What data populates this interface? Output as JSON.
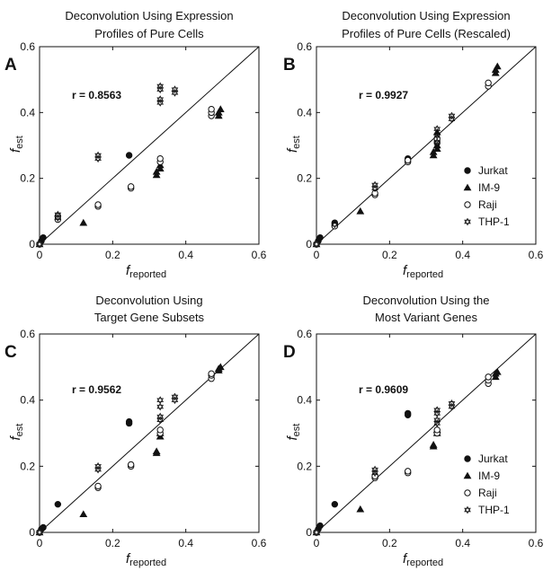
{
  "figure": {
    "background": "#ffffff",
    "ink": "#111111"
  },
  "chart_data": [
    {
      "panel": "A",
      "type": "scatter",
      "title_lines": [
        "Deconvolution Using Expression",
        "Profiles of Pure Cells"
      ],
      "xlabel": "f",
      "xlabel_sub": "reported",
      "ylabel": "f",
      "ylabel_sub": "est",
      "xlim": [
        0,
        0.6
      ],
      "ylim": [
        0,
        0.6
      ],
      "xticks": [
        "0",
        "0.2",
        "0.4",
        "0.6"
      ],
      "yticks": [
        "0",
        "0.2",
        "0.4",
        "0.6"
      ],
      "annotation": "r = 0.8563",
      "diagonal": true,
      "legend": null,
      "series": [
        {
          "name": "Jurkat",
          "marker": "filled-circle",
          "points": [
            [
              0.0,
              0.0
            ],
            [
              0.005,
              0.01
            ],
            [
              0.01,
              0.02
            ],
            [
              0.245,
              0.27
            ]
          ]
        },
        {
          "name": "IM-9",
          "marker": "filled-triangle",
          "points": [
            [
              0.0,
              0.0
            ],
            [
              0.12,
              0.065
            ],
            [
              0.32,
              0.21
            ],
            [
              0.32,
              0.22
            ],
            [
              0.33,
              0.23
            ],
            [
              0.33,
              0.24
            ],
            [
              0.49,
              0.39
            ],
            [
              0.49,
              0.4
            ],
            [
              0.495,
              0.41
            ]
          ]
        },
        {
          "name": "Raji",
          "marker": "open-circle",
          "points": [
            [
              0.0,
              0.0
            ],
            [
              0.05,
              0.075
            ],
            [
              0.05,
              0.085
            ],
            [
              0.16,
              0.115
            ],
            [
              0.16,
              0.12
            ],
            [
              0.25,
              0.17
            ],
            [
              0.25,
              0.175
            ],
            [
              0.33,
              0.25
            ],
            [
              0.33,
              0.26
            ],
            [
              0.47,
              0.39
            ],
            [
              0.47,
              0.4
            ],
            [
              0.47,
              0.41
            ]
          ]
        },
        {
          "name": "THP-1",
          "marker": "open-star",
          "points": [
            [
              0.0,
              0.0
            ],
            [
              0.05,
              0.08
            ],
            [
              0.05,
              0.09
            ],
            [
              0.16,
              0.26
            ],
            [
              0.16,
              0.27
            ],
            [
              0.33,
              0.43
            ],
            [
              0.33,
              0.44
            ],
            [
              0.33,
              0.47
            ],
            [
              0.33,
              0.48
            ],
            [
              0.37,
              0.46
            ],
            [
              0.37,
              0.47
            ]
          ]
        }
      ]
    },
    {
      "panel": "B",
      "type": "scatter",
      "title_lines": [
        "Deconvolution Using Expression",
        "Profiles of Pure Cells (Rescaled)"
      ],
      "xlabel": "f",
      "xlabel_sub": "reported",
      "ylabel": "f",
      "ylabel_sub": "est",
      "xlim": [
        0,
        0.6
      ],
      "ylim": [
        0,
        0.6
      ],
      "xticks": [
        "0",
        "0.2",
        "0.4",
        "0.6"
      ],
      "yticks": [
        "0",
        "0.2",
        "0.4",
        "0.6"
      ],
      "annotation": "r = 0.9927",
      "diagonal": true,
      "legend": {
        "placement": "bottom-right",
        "entries": [
          "Jurkat",
          "IM-9",
          "Raji",
          "THP-1"
        ]
      },
      "series": [
        {
          "name": "Jurkat",
          "marker": "filled-circle",
          "points": [
            [
              0.0,
              0.0
            ],
            [
              0.005,
              0.01
            ],
            [
              0.01,
              0.02
            ],
            [
              0.05,
              0.06
            ],
            [
              0.05,
              0.065
            ],
            [
              0.25,
              0.26
            ]
          ]
        },
        {
          "name": "IM-9",
          "marker": "filled-triangle",
          "points": [
            [
              0.0,
              0.0
            ],
            [
              0.12,
              0.1
            ],
            [
              0.32,
              0.27
            ],
            [
              0.32,
              0.28
            ],
            [
              0.33,
              0.29
            ],
            [
              0.33,
              0.3
            ],
            [
              0.33,
              0.34
            ],
            [
              0.49,
              0.52
            ],
            [
              0.49,
              0.53
            ],
            [
              0.495,
              0.54
            ]
          ]
        },
        {
          "name": "Raji",
          "marker": "open-circle",
          "points": [
            [
              0.0,
              0.0
            ],
            [
              0.05,
              0.055
            ],
            [
              0.16,
              0.15
            ],
            [
              0.16,
              0.155
            ],
            [
              0.25,
              0.25
            ],
            [
              0.25,
              0.255
            ],
            [
              0.33,
              0.31
            ],
            [
              0.33,
              0.32
            ],
            [
              0.47,
              0.48
            ],
            [
              0.47,
              0.49
            ]
          ]
        },
        {
          "name": "THP-1",
          "marker": "open-star",
          "points": [
            [
              0.0,
              0.0
            ],
            [
              0.05,
              0.06
            ],
            [
              0.16,
              0.17
            ],
            [
              0.16,
              0.18
            ],
            [
              0.33,
              0.3
            ],
            [
              0.33,
              0.31
            ],
            [
              0.33,
              0.33
            ],
            [
              0.33,
              0.35
            ],
            [
              0.37,
              0.38
            ],
            [
              0.37,
              0.39
            ]
          ]
        }
      ]
    },
    {
      "panel": "C",
      "type": "scatter",
      "title_lines": [
        "Deconvolution Using",
        "Target Gene Subsets"
      ],
      "xlabel": "f",
      "xlabel_sub": "reported",
      "ylabel": "f",
      "ylabel_sub": "est",
      "xlim": [
        0,
        0.6
      ],
      "ylim": [
        0,
        0.6
      ],
      "xticks": [
        "0",
        "0.2",
        "0.4",
        "0.6"
      ],
      "yticks": [
        "0",
        "0.2",
        "0.4",
        "0.6"
      ],
      "annotation": "r = 0.9562",
      "diagonal": true,
      "legend": null,
      "series": [
        {
          "name": "Jurkat",
          "marker": "filled-circle",
          "points": [
            [
              0.0,
              0.0
            ],
            [
              0.005,
              0.01
            ],
            [
              0.01,
              0.015
            ],
            [
              0.05,
              0.085
            ],
            [
              0.245,
              0.33
            ],
            [
              0.245,
              0.335
            ]
          ]
        },
        {
          "name": "IM-9",
          "marker": "filled-triangle",
          "points": [
            [
              0.0,
              0.0
            ],
            [
              0.12,
              0.055
            ],
            [
              0.32,
              0.24
            ],
            [
              0.32,
              0.245
            ],
            [
              0.33,
              0.29
            ],
            [
              0.33,
              0.3
            ],
            [
              0.49,
              0.49
            ],
            [
              0.49,
              0.495
            ],
            [
              0.495,
              0.5
            ]
          ]
        },
        {
          "name": "Raji",
          "marker": "open-circle",
          "points": [
            [
              0.0,
              0.0
            ],
            [
              0.16,
              0.135
            ],
            [
              0.16,
              0.14
            ],
            [
              0.25,
              0.2
            ],
            [
              0.25,
              0.205
            ],
            [
              0.33,
              0.3
            ],
            [
              0.33,
              0.31
            ],
            [
              0.47,
              0.465
            ],
            [
              0.47,
              0.475
            ],
            [
              0.47,
              0.48
            ]
          ]
        },
        {
          "name": "THP-1",
          "marker": "open-star",
          "points": [
            [
              0.0,
              0.0
            ],
            [
              0.16,
              0.19
            ],
            [
              0.16,
              0.2
            ],
            [
              0.33,
              0.34
            ],
            [
              0.33,
              0.35
            ],
            [
              0.33,
              0.38
            ],
            [
              0.33,
              0.4
            ],
            [
              0.37,
              0.4
            ],
            [
              0.37,
              0.41
            ]
          ]
        }
      ]
    },
    {
      "panel": "D",
      "type": "scatter",
      "title_lines": [
        "Deconvolution Using the",
        "Most Variant Genes"
      ],
      "xlabel": "f",
      "xlabel_sub": "reported",
      "ylabel": "f",
      "ylabel_sub": "est",
      "xlim": [
        0,
        0.6
      ],
      "ylim": [
        0,
        0.6
      ],
      "xticks": [
        "0",
        "0.2",
        "0.4",
        "0.6"
      ],
      "yticks": [
        "0",
        "0.2",
        "0.4",
        "0.6"
      ],
      "annotation": "r = 0.9609",
      "diagonal": true,
      "legend": {
        "placement": "bottom-right",
        "entries": [
          "Jurkat",
          "IM-9",
          "Raji",
          "THP-1"
        ]
      },
      "series": [
        {
          "name": "Jurkat",
          "marker": "filled-circle",
          "points": [
            [
              0.0,
              0.0
            ],
            [
              0.005,
              0.01
            ],
            [
              0.01,
              0.02
            ],
            [
              0.05,
              0.085
            ],
            [
              0.25,
              0.355
            ],
            [
              0.25,
              0.36
            ]
          ]
        },
        {
          "name": "IM-9",
          "marker": "filled-triangle",
          "points": [
            [
              0.0,
              0.0
            ],
            [
              0.12,
              0.07
            ],
            [
              0.32,
              0.26
            ],
            [
              0.32,
              0.265
            ],
            [
              0.33,
              0.3
            ],
            [
              0.33,
              0.31
            ],
            [
              0.49,
              0.47
            ],
            [
              0.49,
              0.48
            ],
            [
              0.495,
              0.485
            ]
          ]
        },
        {
          "name": "Raji",
          "marker": "open-circle",
          "points": [
            [
              0.0,
              0.0
            ],
            [
              0.16,
              0.165
            ],
            [
              0.16,
              0.17
            ],
            [
              0.25,
              0.18
            ],
            [
              0.25,
              0.185
            ],
            [
              0.33,
              0.3
            ],
            [
              0.33,
              0.31
            ],
            [
              0.47,
              0.45
            ],
            [
              0.47,
              0.46
            ],
            [
              0.47,
              0.47
            ]
          ]
        },
        {
          "name": "THP-1",
          "marker": "open-star",
          "points": [
            [
              0.0,
              0.0
            ],
            [
              0.16,
              0.18
            ],
            [
              0.16,
              0.19
            ],
            [
              0.33,
              0.33
            ],
            [
              0.33,
              0.34
            ],
            [
              0.33,
              0.36
            ],
            [
              0.33,
              0.37
            ],
            [
              0.37,
              0.38
            ],
            [
              0.37,
              0.39
            ]
          ]
        }
      ]
    }
  ]
}
